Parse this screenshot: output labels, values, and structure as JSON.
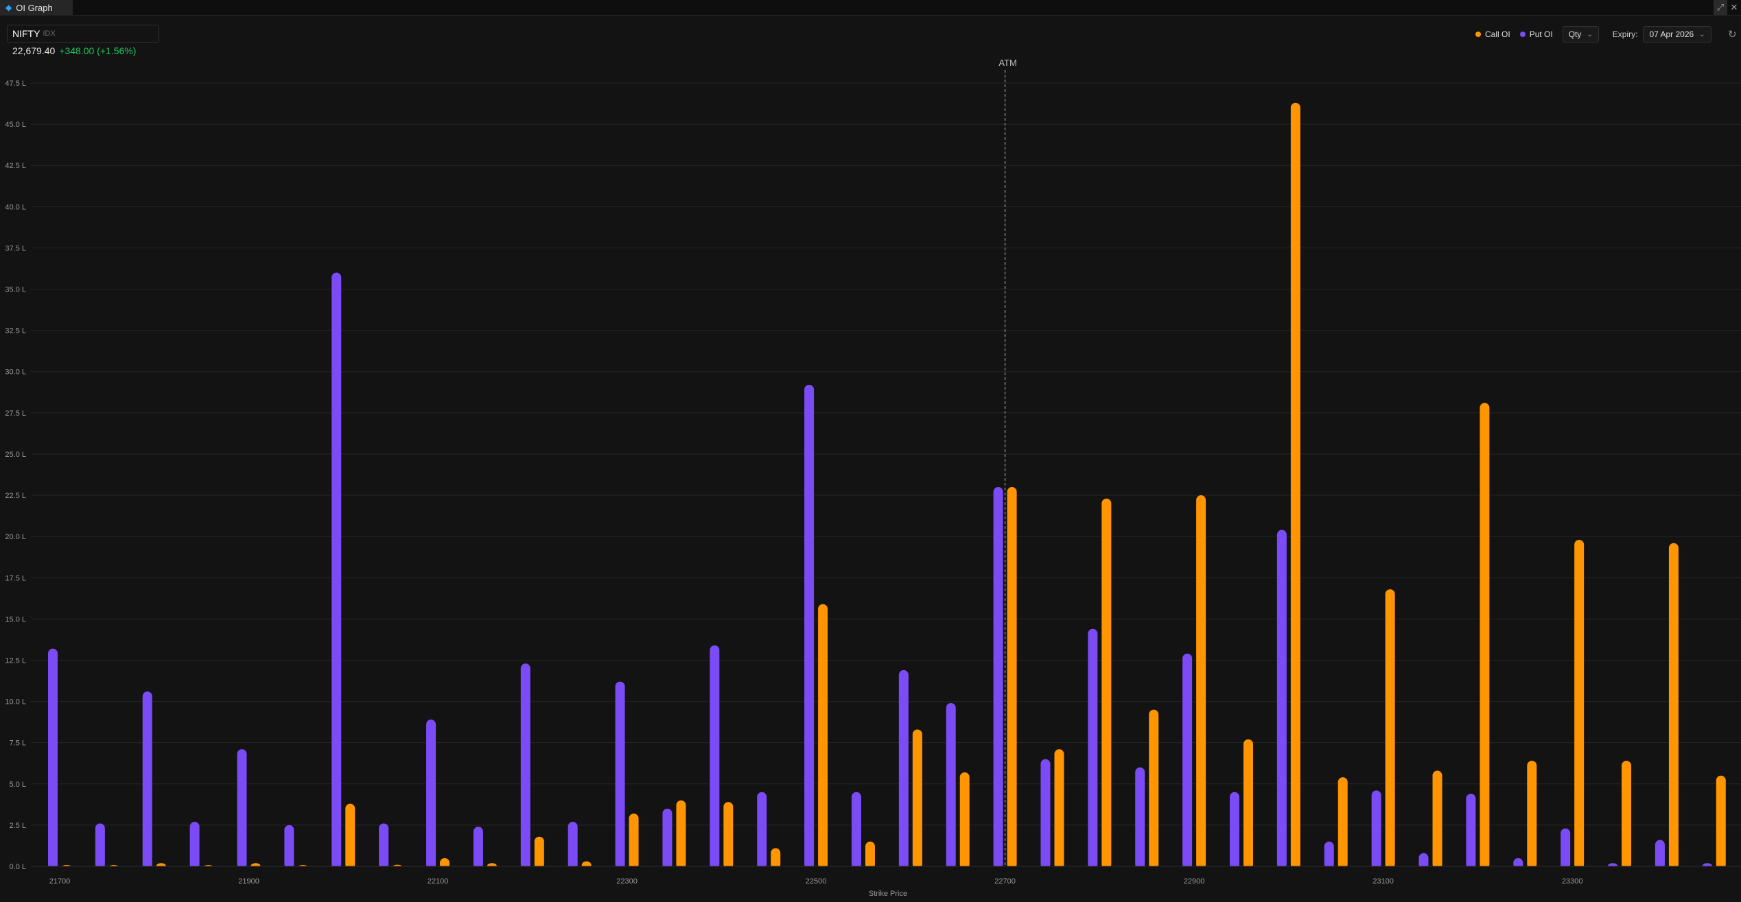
{
  "tab": {
    "title": "OI Graph",
    "icon": "chart-icon"
  },
  "window": {
    "expand_icon": "expand-icon",
    "close_icon": "close-icon",
    "close_glyph": "✕",
    "expand_glyph": "⤢"
  },
  "symbol": {
    "name": "NIFTY",
    "exchange": "IDX",
    "price": "22,679.40",
    "change": "+348.00 (+1.56%)"
  },
  "legend": {
    "call_label": "Call OI",
    "put_label": "Put OI"
  },
  "qty_select": {
    "value": "Qty"
  },
  "expiry": {
    "label": "Expiry:",
    "value": "07 Apr 2026"
  },
  "refresh_icon": "refresh-icon",
  "colors": {
    "put": "#7b4cf5",
    "call": "#ff9500",
    "background": "#131313",
    "grid": "#262626",
    "positive": "#22c55e"
  },
  "chart_data": {
    "type": "bar",
    "xlabel": "Strike Price",
    "ylabel": "",
    "ylim": [
      0,
      47.5
    ],
    "y_ticks": [
      "0.0 L",
      "2.5 L",
      "5.0 L",
      "7.5 L",
      "10.0 L",
      "12.5 L",
      "15.0 L",
      "17.5 L",
      "20.0 L",
      "22.5 L",
      "25.0 L",
      "27.5 L",
      "30.0 L",
      "32.5 L",
      "35.0 L",
      "37.5 L",
      "40.0 L",
      "42.5 L",
      "45.0 L",
      "47.5 L"
    ],
    "x_tick_labels": [
      "21700",
      "21900",
      "22100",
      "22300",
      "22500",
      "22700",
      "22900",
      "23100",
      "23300"
    ],
    "categories": [
      21700,
      21750,
      21800,
      21850,
      21900,
      21950,
      22000,
      22050,
      22100,
      22150,
      22200,
      22250,
      22300,
      22350,
      22400,
      22450,
      22500,
      22550,
      22600,
      22650,
      22700,
      22750,
      22800,
      22850,
      22900,
      22950,
      23000,
      23050,
      23100,
      23150,
      23200,
      23250,
      23300,
      23350,
      23400,
      23450,
      23500
    ],
    "atm_label": "ATM",
    "atm_strike": 22700,
    "series": [
      {
        "name": "Put OI",
        "values": [
          13.2,
          2.6,
          10.6,
          2.7,
          7.1,
          2.5,
          36.0,
          2.6,
          8.9,
          2.4,
          12.3,
          2.7,
          11.2,
          3.5,
          13.4,
          4.5,
          29.2,
          4.5,
          11.9,
          9.9,
          23.0,
          6.5,
          14.4,
          6.0,
          12.9,
          4.5,
          20.4,
          1.5,
          4.6,
          0.8,
          4.4,
          0.5,
          2.3,
          0.2,
          1.6,
          0.2,
          0.0
        ]
      },
      {
        "name": "Call OI",
        "values": [
          0.0,
          0.0,
          0.2,
          0.0,
          0.2,
          0.0,
          3.8,
          0.1,
          0.5,
          0.2,
          1.8,
          0.3,
          3.2,
          4.0,
          3.9,
          1.1,
          15.9,
          1.5,
          8.3,
          5.7,
          23.0,
          7.1,
          22.3,
          9.5,
          22.5,
          7.7,
          46.3,
          5.4,
          16.8,
          5.8,
          28.1,
          6.4,
          19.8,
          6.4,
          19.6,
          5.5,
          0.0
        ]
      }
    ],
    "grid": true,
    "legend_position": "top-right"
  }
}
